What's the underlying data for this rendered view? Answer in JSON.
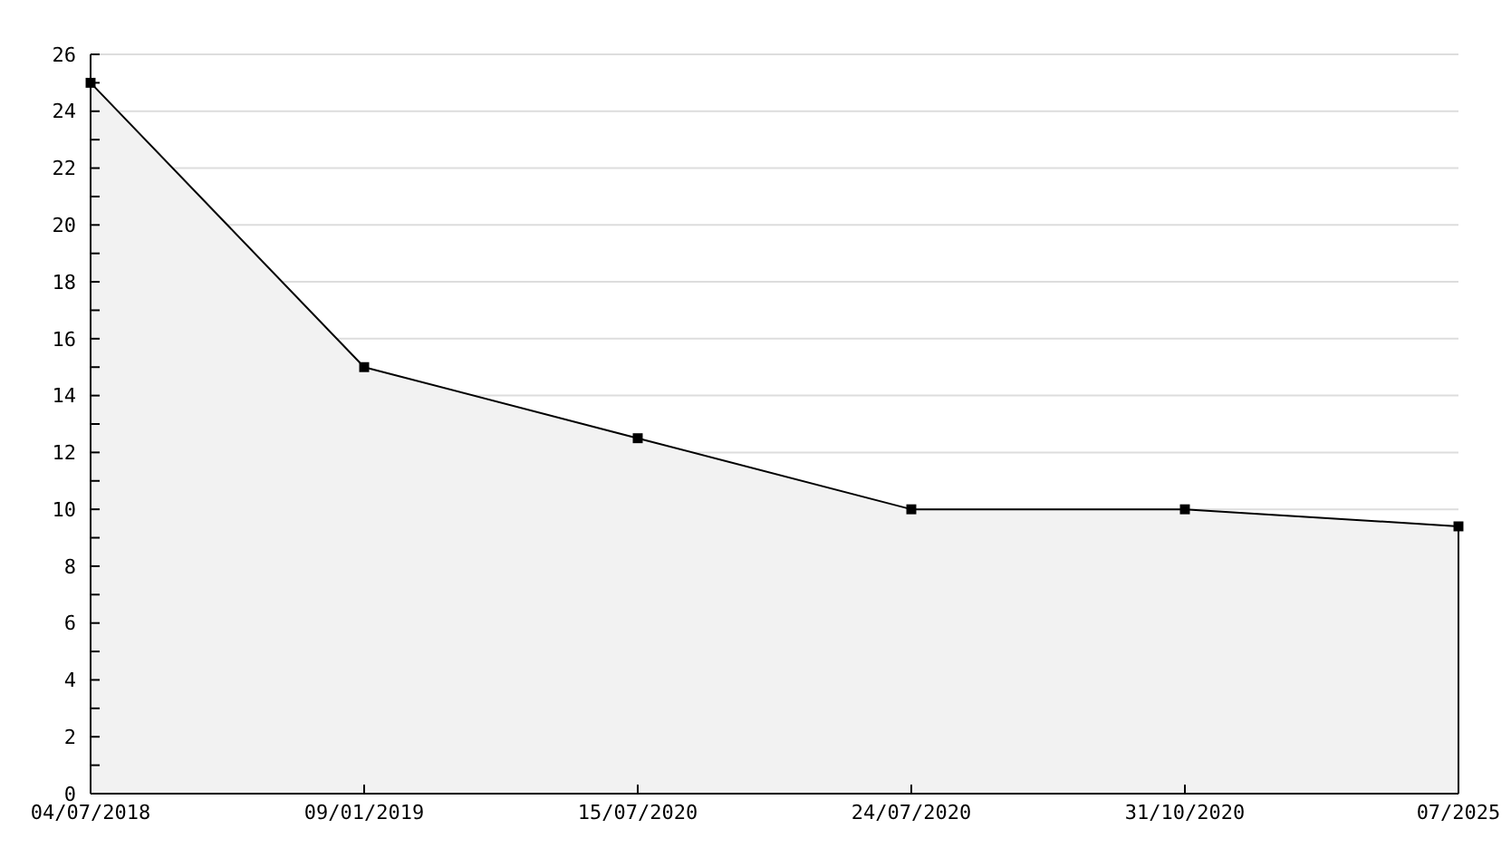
{
  "chart_data": {
    "type": "area",
    "categories": [
      "04/07/2018",
      "09/01/2019",
      "15/07/2020",
      "24/07/2020",
      "31/10/2020",
      "07/2025"
    ],
    "series": [
      {
        "color": "#000000",
        "values": [
          25,
          15,
          12.5,
          10,
          10,
          9.4
        ]
      }
    ],
    "ylim": [
      0,
      26
    ],
    "yticks": [
      0,
      {
        "value": 1,
        "label": null
      },
      2,
      {
        "value": 3,
        "label": null
      },
      4,
      {
        "value": 5,
        "label": null
      },
      6,
      {
        "value": 7,
        "label": null
      },
      8,
      {
        "value": 9,
        "label": null
      },
      10,
      {
        "value": 11,
        "label": null
      },
      12,
      {
        "value": 13,
        "label": null
      },
      14,
      {
        "value": 15,
        "label": null
      },
      16,
      {
        "value": 17,
        "label": null
      },
      18,
      {
        "value": 19,
        "label": null
      },
      20,
      {
        "value": 21,
        "label": null
      },
      22,
      {
        "value": 23,
        "label": null
      },
      24,
      {
        "value": 25,
        "label": null
      },
      26
    ],
    "grid": "y",
    "marker": "square",
    "line_style": "solid"
  }
}
